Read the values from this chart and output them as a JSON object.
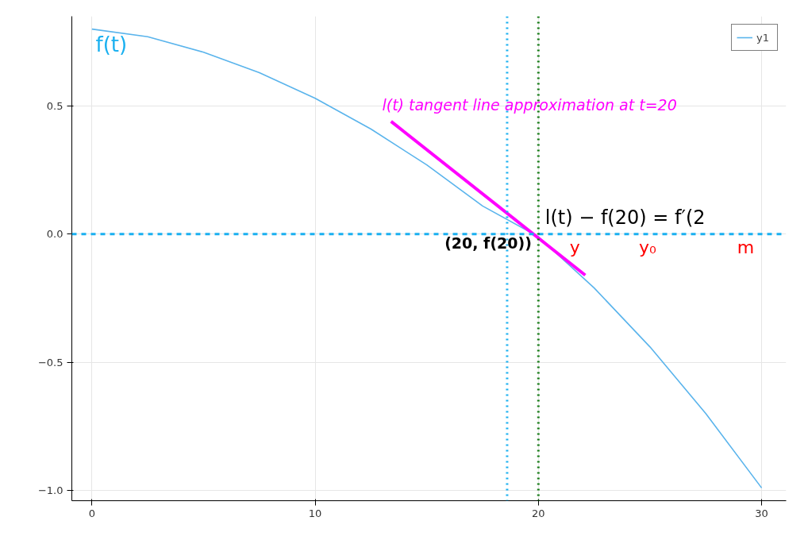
{
  "chart_data": {
    "type": "line",
    "x": [
      0,
      2.5,
      5,
      7.5,
      10,
      12.5,
      15,
      17.5,
      20,
      22.5,
      25,
      27.5,
      30
    ],
    "series": [
      {
        "name": "y1",
        "color": "#5ab4ec",
        "values": [
          0.8,
          0.77,
          0.71,
          0.63,
          0.53,
          0.41,
          0.27,
          0.11,
          -0.01,
          -0.21,
          -0.44,
          -0.7,
          -0.99
        ]
      },
      {
        "color": "#ff00ff",
        "x": [
          13.4,
          22.1
        ],
        "values": [
          0.44,
          -0.16
        ]
      }
    ],
    "xlim": [
      -0.9,
      31.1
    ],
    "ylim": [
      -1.04,
      0.85
    ],
    "xticks": [
      0,
      10,
      20,
      30
    ],
    "yticks": [
      {
        "value": -1,
        "label": "−1.0"
      },
      {
        "value": -0.5,
        "label": "−0.5"
      },
      {
        "value": 0,
        "label": "0.0"
      },
      {
        "value": 0.5,
        "label": "0.5"
      }
    ],
    "grid": true,
    "legend": "top right",
    "marker": "none",
    "line_style": "solid",
    "ref_lines": [
      {
        "axis": "y",
        "value": 0,
        "color": "#1ab0f0",
        "line_style": "dashed"
      },
      {
        "axis": "x",
        "value": 18.6,
        "color": "#1ab0f0",
        "line_style": "dotted"
      },
      {
        "axis": "x",
        "value": 20,
        "color": "#127a12",
        "line_style": "dotted"
      }
    ],
    "annotations": [
      "f(t)",
      {
        "text": "l(t) tangent line approximation at t=20",
        "x": 13.4,
        "y": 0.44
      },
      {
        "text": "(20, f(20))",
        "x": 20,
        "y": 0
      },
      "l(t) − f(20) = f′(2",
      "y",
      "y₀",
      "m"
    ]
  }
}
